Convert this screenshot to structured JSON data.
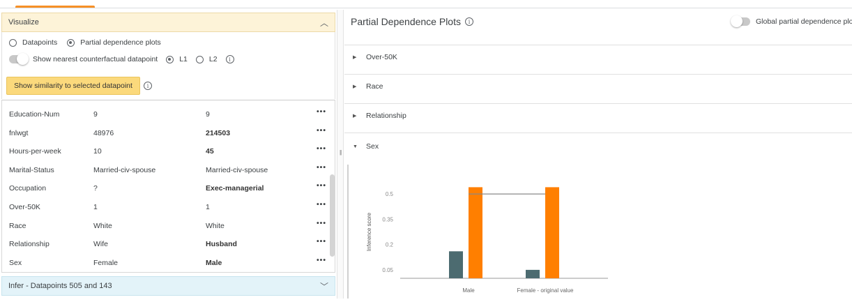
{
  "visualize": {
    "title": "Visualize",
    "options": [
      {
        "label": "Datapoints",
        "selected": false
      },
      {
        "label": "Partial dependence plots",
        "selected": true
      }
    ],
    "counterfactual_label": "Show nearest counterfactual datapoint",
    "distance": [
      {
        "label": "L1",
        "selected": true
      },
      {
        "label": "L2",
        "selected": false
      }
    ],
    "similarity_button": "Show similarity to selected datapoint"
  },
  "table": {
    "rows": [
      {
        "key": "Education-Num",
        "v1": "9",
        "v2": "9",
        "diff": false
      },
      {
        "key": "fnlwgt",
        "v1": "48976",
        "v2": "214503",
        "diff": true
      },
      {
        "key": "Hours-per-week",
        "v1": "10",
        "v2": "45",
        "diff": true
      },
      {
        "key": "Marital-Status",
        "v1": "Married-civ-spouse",
        "v2": "Married-civ-spouse",
        "diff": false
      },
      {
        "key": "Occupation",
        "v1": "?",
        "v2": "Exec-managerial",
        "diff": true
      },
      {
        "key": "Over-50K",
        "v1": "1",
        "v2": "1",
        "diff": false
      },
      {
        "key": "Race",
        "v1": "White",
        "v2": "White",
        "diff": false
      },
      {
        "key": "Relationship",
        "v1": "Wife",
        "v2": "Husband",
        "diff": true
      },
      {
        "key": "Sex",
        "v1": "Female",
        "v2": "Male",
        "diff": true
      }
    ],
    "more": "•••"
  },
  "infer": {
    "title": "Infer - Datapoints 505 and 143"
  },
  "pdp": {
    "title": "Partial Dependence Plots",
    "global_label": "Global partial dependence plo",
    "features": [
      {
        "label": "Over-50K",
        "expanded": false
      },
      {
        "label": "Race",
        "expanded": false
      },
      {
        "label": "Relationship",
        "expanded": false
      },
      {
        "label": "Sex",
        "expanded": true
      }
    ]
  },
  "colors": {
    "accent": "#f57c00",
    "teal": "#4c6b70",
    "orange": "#ff7f00"
  },
  "chart_data": {
    "type": "bar",
    "ylabel": "Inference score",
    "yticks": [
      0.05,
      0.2,
      0.35,
      0.5
    ],
    "ylim": [
      0,
      0.55
    ],
    "categories": [
      "Male",
      "Female - original value"
    ],
    "series": [
      {
        "values": [
          0.16,
          0.05
        ],
        "color": "#4c6b70"
      },
      {
        "values": [
          0.54,
          0.54
        ],
        "color": "#ff7f00"
      }
    ],
    "reference_line": 0.5
  }
}
